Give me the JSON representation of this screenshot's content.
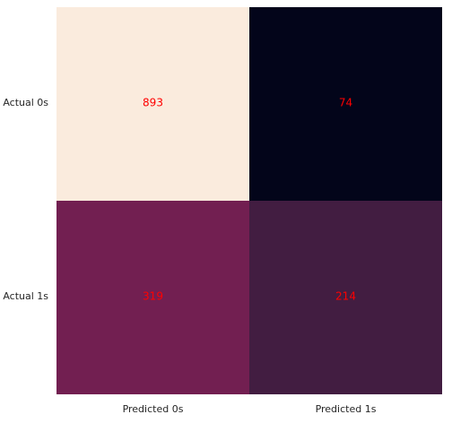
{
  "chart_data": {
    "type": "heatmap",
    "title": "",
    "xlabel": "",
    "ylabel": "",
    "x_categories": [
      "Predicted 0s",
      "Predicted 1s"
    ],
    "y_categories": [
      "Actual 0s",
      "Actual 1s"
    ],
    "values": [
      [
        893,
        74
      ],
      [
        319,
        214
      ]
    ],
    "cell_colors": [
      [
        "#faebdd",
        "#03051a"
      ],
      [
        "#721f51",
        "#421d41"
      ]
    ],
    "annotation_color": "#ff0000",
    "tick_label_color": "#262626",
    "grid": false,
    "colorbar": false
  }
}
